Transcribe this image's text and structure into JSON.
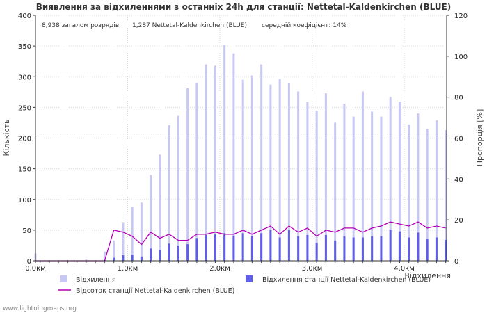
{
  "chart_data": {
    "type": "bar",
    "title": "Виявлення за відхиленнями з останніх 24h для станції: Nettetal-Kaldenkirchen (BLUE)",
    "stats": {
      "total": "8,938 загалом розрядів",
      "station": "1,287 Nettetal-Kaldenkirchen (BLUE)",
      "ratio": "середній коефіцієнт: 14%"
    },
    "xlabel": "Відхилення",
    "ylabel_left": "Кількість",
    "ylabel_right": "Пропорція [%]",
    "x_tick_labels": [
      "0.0км",
      "1.0км",
      "2.0км",
      "3.0км",
      "4.0км"
    ],
    "x_tick_values": [
      0,
      1.0,
      2.0,
      3.0,
      4.0
    ],
    "bin_width": 0.1,
    "xlim": [
      0,
      4.46
    ],
    "ylim_left": [
      0,
      400
    ],
    "yticks_left": [
      0,
      50,
      100,
      150,
      200,
      250,
      300,
      350,
      400
    ],
    "ylim_right": [
      0,
      120
    ],
    "yticks_right": [
      0,
      20,
      40,
      60,
      80,
      100,
      120
    ],
    "x": [
      0.0,
      0.05,
      0.15,
      0.25,
      0.35,
      0.45,
      0.55,
      0.65,
      0.75,
      0.85,
      0.95,
      1.05,
      1.15,
      1.25,
      1.35,
      1.45,
      1.55,
      1.65,
      1.75,
      1.85,
      1.95,
      2.05,
      2.15,
      2.25,
      2.35,
      2.45,
      2.55,
      2.65,
      2.75,
      2.85,
      2.95,
      3.05,
      3.15,
      3.25,
      3.35,
      3.45,
      3.55,
      3.65,
      3.75,
      3.85,
      3.95,
      4.05,
      4.15,
      4.25,
      4.35,
      4.45
    ],
    "series": [
      {
        "name": "Відхилення",
        "color": "#c8c8f5",
        "values": [
          12,
          1,
          1,
          1,
          1,
          1,
          2,
          1,
          15,
          33,
          63,
          88,
          95,
          140,
          173,
          221,
          236,
          281,
          290,
          320,
          318,
          352,
          338,
          295,
          302,
          320,
          287,
          296,
          289,
          276,
          259,
          244,
          273,
          225,
          256,
          235,
          276,
          243,
          235,
          267,
          259,
          222,
          240,
          215,
          229,
          213
        ]
      },
      {
        "name": "Відхилення станції Nettetal-Kaldenkirchen (BLUE)",
        "color": "#5e5ee8",
        "values": [
          0,
          0,
          0,
          0,
          0,
          0,
          0,
          0,
          1,
          5,
          9,
          10,
          7,
          20,
          18,
          28,
          25,
          27,
          37,
          42,
          43,
          45,
          41,
          45,
          40,
          45,
          50,
          38,
          50,
          40,
          42,
          29,
          42,
          33,
          40,
          38,
          38,
          40,
          40,
          51,
          48,
          38,
          46,
          35,
          38,
          34
        ]
      },
      {
        "name": "Відсоток станції Nettetal-Kaldenkirchen (BLUE)",
        "color": "#b400b4",
        "axis": "right",
        "values": [
          0,
          0,
          0,
          0,
          0,
          0,
          0,
          0,
          0,
          15,
          14,
          12,
          8,
          14,
          11,
          13,
          10,
          10,
          13,
          13,
          14,
          13,
          13,
          15,
          13,
          15,
          17,
          13,
          17,
          14,
          16,
          12,
          15,
          14,
          16,
          16,
          14,
          16,
          17,
          19,
          18,
          17,
          19,
          16,
          17,
          16
        ]
      }
    ],
    "legend": [
      {
        "label": "Відхилення",
        "kind": "swatch",
        "color": "#c8c8f5"
      },
      {
        "label": "Відхилення станції Nettetal-Kaldenkirchen (BLUE)",
        "kind": "swatch",
        "color": "#5e5ee8"
      },
      {
        "label": "Відсоток станції Nettetal-Kaldenkirchen (BLUE)",
        "kind": "line",
        "color": "#b400b4"
      }
    ],
    "credit": "www.lightningmaps.org"
  }
}
